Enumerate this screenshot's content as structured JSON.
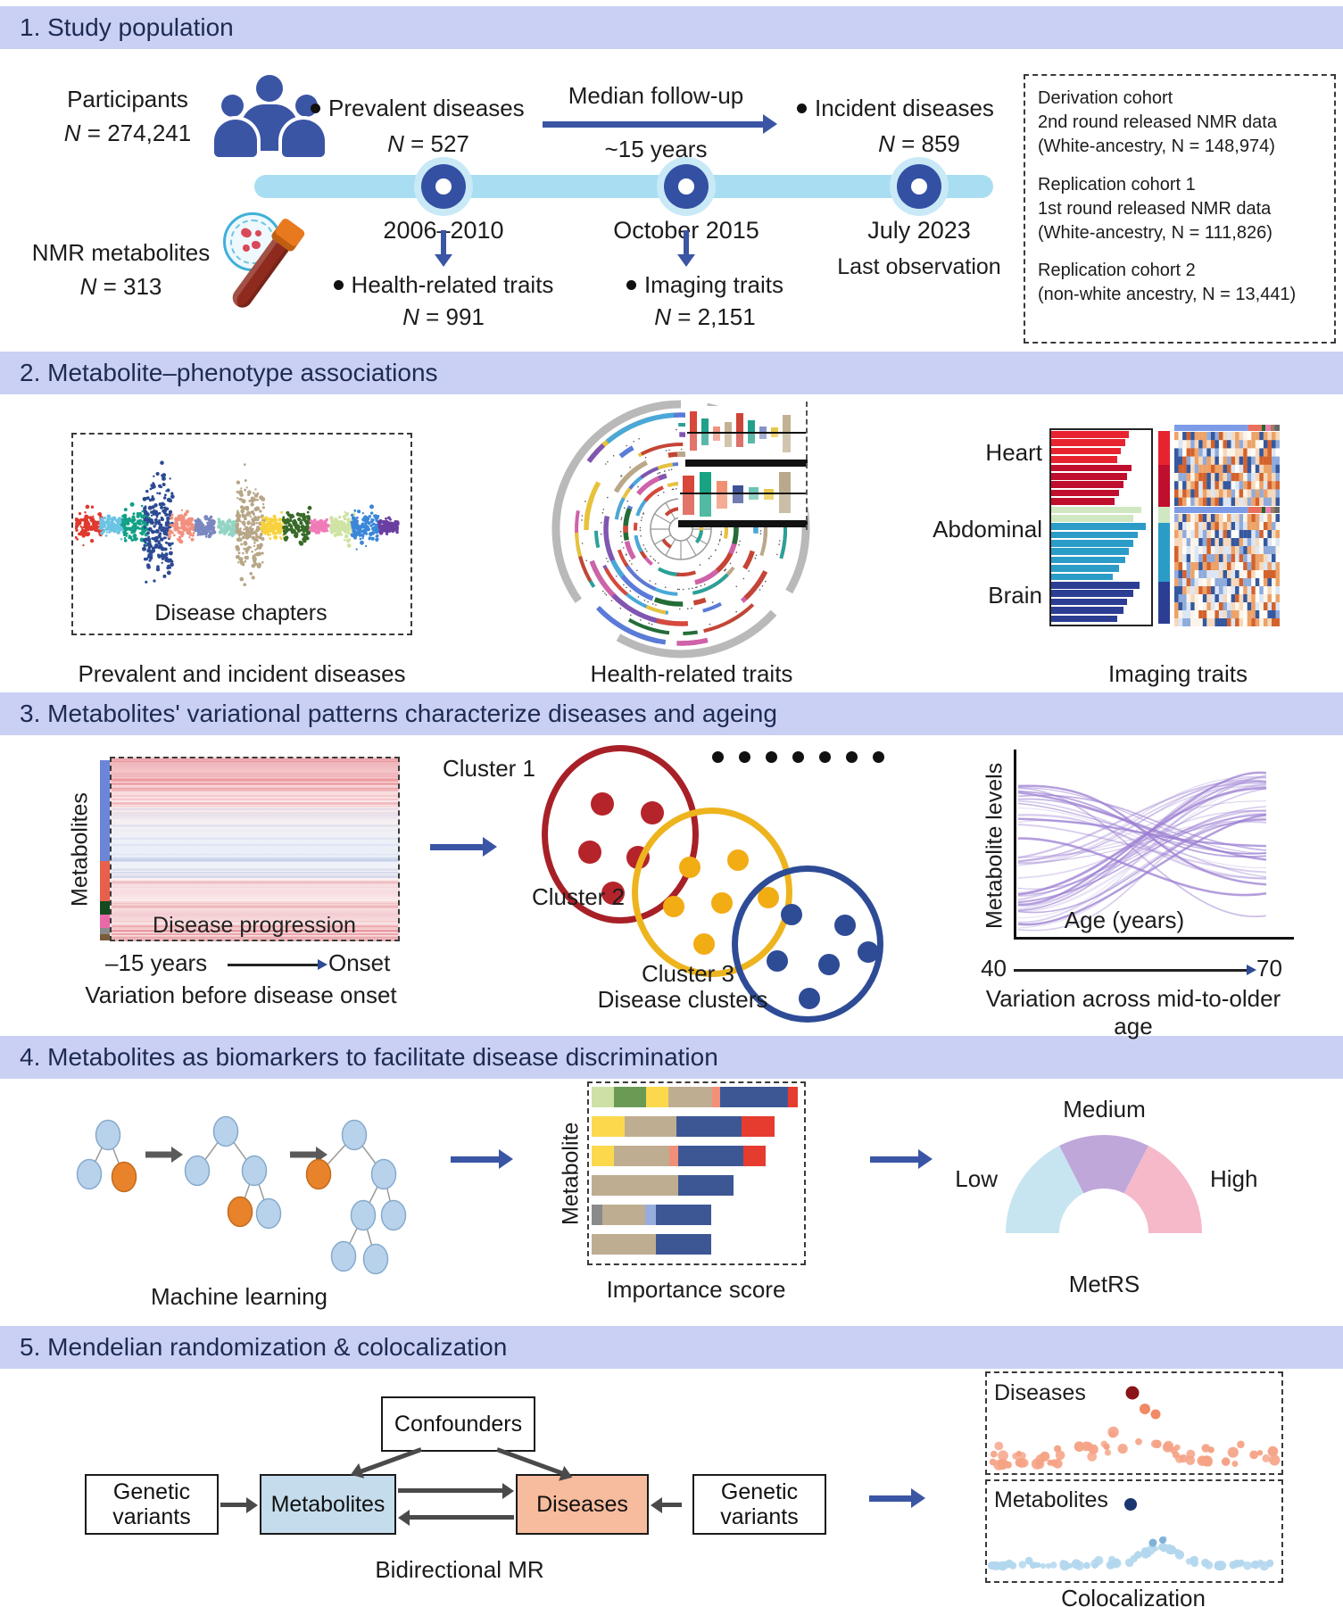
{
  "colors": {
    "header_bg": "#c9d0f4",
    "header_text": "#1e2a52",
    "navy": "#3b55a5",
    "timeline_blue": "#a9def2",
    "metabolites_box_fill": "#c5dcec",
    "diseases_box_fill": "#f7bb9d"
  },
  "s1": {
    "title": "1. Study population",
    "participants_label": "Participants",
    "participants_n": "N = 274,241",
    "nmr_label": "NMR metabolites",
    "nmr_n": "N = 313",
    "prevalent_label": "Prevalent diseases",
    "prevalent_n": "N = 527",
    "followup_label": "Median follow-up",
    "followup_years": "~15 years",
    "incident_label": "Incident diseases",
    "incident_n": "N = 859",
    "dates": [
      "2006–2010",
      "October 2015",
      "July 2023"
    ],
    "last_observation": "Last observation",
    "health_label": "Health-related traits",
    "health_n": "N = 991",
    "imaging_label": "Imaging traits",
    "imaging_n": "N = 2,151",
    "cohorts": [
      {
        "name": "Derivation cohort",
        "line1": "2nd round released NMR data",
        "line2": "(White-ancestry, N = 148,974)"
      },
      {
        "name": "Replication cohort 1",
        "line1": "1st round released NMR data",
        "line2": "(White-ancestry, N = 111,826)"
      },
      {
        "name": "Replication cohort 2",
        "line1": "(non-white ancestry, N = 13,441)",
        "line2": ""
      }
    ]
  },
  "s2": {
    "title": "2. Metabolite–phenotype associations",
    "manhattan_label": "Disease chapters",
    "manhattan_caption": "Prevalent and incident diseases",
    "circular_caption": "Health-related traits",
    "heart": "Heart",
    "abdominal": "Abdominal",
    "brain": "Brain",
    "imaging_caption": "Imaging traits"
  },
  "s3": {
    "title": "3. Metabolites' variational patterns characterize diseases and ageing",
    "ylabel": "Metabolites",
    "progression_label": "Disease progression",
    "x_start": "–15 years",
    "x_end": "Onset",
    "left_caption": "Variation before disease onset",
    "cluster1": "Cluster 1",
    "cluster2": "Cluster 2",
    "cluster3": "Cluster 3",
    "mid_caption": "Disease clusters",
    "age_ylabel": "Metabolite levels",
    "age_xlabel": "Age (years)",
    "age_min": "40",
    "age_max": "70",
    "right_caption": "Variation across mid-to-older age"
  },
  "s4": {
    "title": "4. Metabolites as biomarkers to facilitate disease discrimination",
    "ml_caption": "Machine learning",
    "importance_ylabel": "Metabolite",
    "importance_caption": "Importance score",
    "low": "Low",
    "medium": "Medium",
    "high": "High",
    "gauge_caption": "MetRS"
  },
  "s5": {
    "title": "5. Mendelian randomization & colocalization",
    "confounders": "Confounders",
    "genetic_variants_left": "Genetic variants",
    "metabolites_box": "Metabolites",
    "diseases_box": "Diseases",
    "genetic_variants_right": "Genetic variants",
    "mr_caption": "Bidirectional MR",
    "coloc_diseases": "Diseases",
    "coloc_metabolites": "Metabolites",
    "coloc_caption": "Colocalization"
  },
  "deco": {
    "manhattan": [
      [
        "#e0392e",
        15,
        11
      ],
      [
        "#6cc4e4",
        13,
        7
      ],
      [
        "#12a187",
        15,
        12
      ],
      [
        "#2d4a94",
        16,
        38
      ],
      [
        "#f2907e",
        14,
        10
      ],
      [
        "#7b87c0",
        11,
        7
      ],
      [
        "#93d4c4",
        10,
        6
      ],
      [
        "#b7a687",
        15,
        34
      ],
      [
        "#f8d23c",
        13,
        8
      ],
      [
        "#386a28",
        15,
        12
      ],
      [
        "#f07bb8",
        10,
        5
      ],
      [
        "#cfe3a4",
        13,
        10
      ],
      [
        "#3a87d8",
        16,
        14
      ],
      [
        "#6a3fa0",
        11,
        5
      ]
    ],
    "ring_palette": [
      "#5b7bd8",
      "#d6493c",
      "#256c38",
      "#cf62a8",
      "#2aa198",
      "#bba88a",
      "#e8c23c",
      "#8056b0",
      "#4aa8d8",
      "#c44536"
    ],
    "inset1": [
      [
        8,
        24,
        20,
        "#d9463a"
      ],
      [
        8,
        16,
        14,
        "#23a08c"
      ],
      [
        8,
        7,
        9,
        "#ef9280"
      ],
      [
        8,
        12,
        16,
        "#c3b193"
      ],
      [
        8,
        22,
        16,
        "#cf4438"
      ],
      [
        8,
        14,
        12,
        "#23a08c"
      ],
      [
        8,
        7,
        7,
        "#8494c8"
      ],
      [
        8,
        6,
        5,
        "#e8c84a"
      ],
      [
        9,
        20,
        22,
        "#c3b193"
      ]
    ],
    "inset2": [
      [
        13,
        20,
        24,
        "#d9463a"
      ],
      [
        13,
        24,
        26,
        "#18a383"
      ],
      [
        12,
        14,
        17,
        "#f09070"
      ],
      [
        12,
        9,
        11,
        "#3f5296"
      ],
      [
        11,
        7,
        7,
        "#6cc4b4"
      ],
      [
        11,
        5,
        7,
        "#e8c84a"
      ],
      [
        13,
        24,
        22,
        "#b9a88c"
      ]
    ],
    "imaging": [
      [
        "#e82330",
        [
          76,
          72,
          68,
          64
        ]
      ],
      [
        "#c00e2e",
        [
          78,
          74,
          70,
          66,
          62
        ]
      ],
      [
        "#cfe8c2",
        [
          88,
          80
        ]
      ],
      [
        "#2a9cc7",
        [
          92,
          84,
          80,
          76,
          72,
          66,
          60
        ]
      ],
      [
        "#2c3e93",
        [
          86,
          80,
          74,
          70,
          64
        ]
      ]
    ],
    "strip_seg": [
      [
        "#7d9ce8",
        0.7
      ],
      [
        "#e8705c",
        0.13
      ],
      [
        "#26682e",
        0.035
      ],
      [
        "#e87fb0",
        0.05
      ],
      [
        "#a8795a",
        0.035
      ],
      [
        "#666666",
        0.05
      ]
    ],
    "colorbar": [
      [
        "#6b86d8",
        113
      ],
      [
        "#e8604c",
        45
      ],
      [
        "#15491e",
        15
      ],
      [
        "#e869a8",
        15
      ],
      [
        "#8a8a8a",
        7
      ],
      [
        "#7a5c3a",
        7
      ]
    ],
    "importance": [
      [
        [
          "#cde0a6",
          25
        ],
        [
          "#6b9a55",
          36
        ],
        [
          "#fcd84c",
          25
        ],
        [
          "#bfad92",
          49
        ],
        [
          "#f28f78",
          9
        ],
        [
          "#3d5795",
          76
        ],
        [
          "#e63c2f",
          11
        ]
      ],
      [
        [
          "#fcd84c",
          37
        ],
        [
          "#bfad92",
          58
        ],
        [
          "#3d5795",
          73
        ],
        [
          "#e63c2f",
          37
        ]
      ],
      [
        [
          "#fcd84c",
          25
        ],
        [
          "#bfad92",
          62
        ],
        [
          "#f28f78",
          10
        ],
        [
          "#3d5795",
          73
        ],
        [
          "#e63c2f",
          25
        ]
      ],
      [
        [
          "#bfad92",
          97
        ],
        [
          "#3d5795",
          62
        ]
      ],
      [
        [
          "#8a8a8a",
          12
        ],
        [
          "#bfad92",
          48
        ],
        [
          "#97aedd",
          12
        ],
        [
          "#3d5795",
          62
        ]
      ],
      [
        [
          "#bfad92",
          72
        ],
        [
          "#3d5795",
          62
        ]
      ]
    ],
    "gauge": [
      [
        180,
        117,
        "#c7e5f0"
      ],
      [
        117,
        63,
        "#c0a7da"
      ],
      [
        63,
        0,
        "#f5b9ca"
      ]
    ],
    "coloc": {
      "salmon": "#f5a285",
      "darkred": "#8b1418",
      "lightblue": "#b3d7ee",
      "navy": "#1a3570"
    }
  }
}
